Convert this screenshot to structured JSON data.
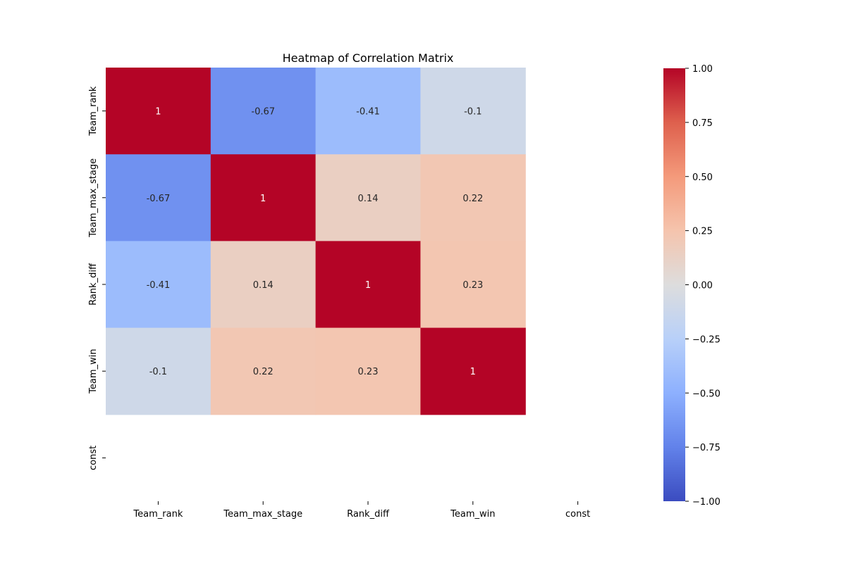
{
  "chart_data": {
    "type": "heatmap",
    "title": "Heatmap of Correlation Matrix",
    "xlabel": "",
    "ylabel": "",
    "x_categories": [
      "Team_rank",
      "Team_max_stage",
      "Rank_diff",
      "Team_win",
      "const"
    ],
    "y_categories": [
      "Team_rank",
      "Team_max_stage",
      "Rank_diff",
      "Team_win",
      "const"
    ],
    "matrix": [
      [
        1,
        -0.67,
        -0.41,
        -0.1,
        null
      ],
      [
        -0.67,
        1,
        0.14,
        0.22,
        null
      ],
      [
        -0.41,
        0.14,
        1,
        0.23,
        null
      ],
      [
        -0.1,
        0.22,
        0.23,
        1,
        null
      ],
      [
        null,
        null,
        null,
        null,
        null
      ]
    ],
    "annotations": [
      [
        "1",
        "-0.67",
        "-0.41",
        "-0.1",
        ""
      ],
      [
        "-0.67",
        "1",
        "0.14",
        "0.22",
        ""
      ],
      [
        "-0.41",
        "0.14",
        "1",
        "0.23",
        ""
      ],
      [
        "-0.1",
        "0.22",
        "0.23",
        "1",
        ""
      ],
      [
        "",
        "",
        "",
        "",
        ""
      ]
    ],
    "colormap": "coolwarm",
    "vmin": -1.0,
    "vmax": 1.0,
    "colorbar_ticks": [
      "1.00",
      "0.75",
      "0.50",
      "0.25",
      "0.00",
      "−0.25",
      "−0.50",
      "−0.75",
      "−1.00"
    ],
    "colorbar_tick_values": [
      1.0,
      0.75,
      0.5,
      0.25,
      0.0,
      -0.25,
      -0.5,
      -0.75,
      -1.0
    ],
    "grid": false,
    "legend": "colorbar-right"
  }
}
